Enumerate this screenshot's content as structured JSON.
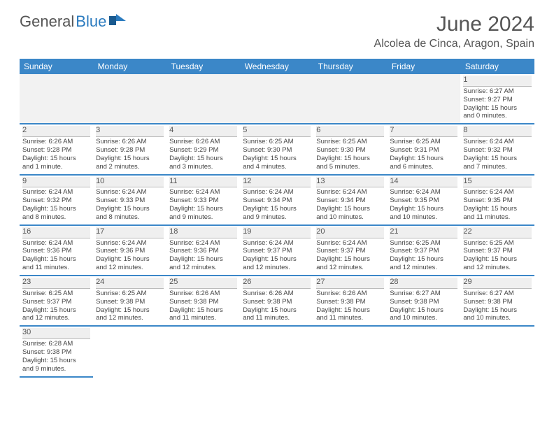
{
  "brand": {
    "part1": "General",
    "part2": "Blue"
  },
  "title": "June 2024",
  "location": "Alcolea de Cinca, Aragon, Spain",
  "day_headers": [
    "Sunday",
    "Monday",
    "Tuesday",
    "Wednesday",
    "Thursday",
    "Friday",
    "Saturday"
  ],
  "colors": {
    "header_bg": "#3b87c8",
    "header_text": "#ffffff",
    "border": "#3b87c8",
    "daynum_bg": "#efefef",
    "text": "#444444",
    "brand_gray": "#555555",
    "brand_blue": "#2b7bbf"
  },
  "weeks": [
    [
      null,
      null,
      null,
      null,
      null,
      null,
      {
        "n": "1",
        "sr": "Sunrise: 6:27 AM",
        "ss": "Sunset: 9:27 PM",
        "d1": "Daylight: 15 hours",
        "d2": "and 0 minutes."
      }
    ],
    [
      {
        "n": "2",
        "sr": "Sunrise: 6:26 AM",
        "ss": "Sunset: 9:28 PM",
        "d1": "Daylight: 15 hours",
        "d2": "and 1 minute."
      },
      {
        "n": "3",
        "sr": "Sunrise: 6:26 AM",
        "ss": "Sunset: 9:28 PM",
        "d1": "Daylight: 15 hours",
        "d2": "and 2 minutes."
      },
      {
        "n": "4",
        "sr": "Sunrise: 6:26 AM",
        "ss": "Sunset: 9:29 PM",
        "d1": "Daylight: 15 hours",
        "d2": "and 3 minutes."
      },
      {
        "n": "5",
        "sr": "Sunrise: 6:25 AM",
        "ss": "Sunset: 9:30 PM",
        "d1": "Daylight: 15 hours",
        "d2": "and 4 minutes."
      },
      {
        "n": "6",
        "sr": "Sunrise: 6:25 AM",
        "ss": "Sunset: 9:30 PM",
        "d1": "Daylight: 15 hours",
        "d2": "and 5 minutes."
      },
      {
        "n": "7",
        "sr": "Sunrise: 6:25 AM",
        "ss": "Sunset: 9:31 PM",
        "d1": "Daylight: 15 hours",
        "d2": "and 6 minutes."
      },
      {
        "n": "8",
        "sr": "Sunrise: 6:24 AM",
        "ss": "Sunset: 9:32 PM",
        "d1": "Daylight: 15 hours",
        "d2": "and 7 minutes."
      }
    ],
    [
      {
        "n": "9",
        "sr": "Sunrise: 6:24 AM",
        "ss": "Sunset: 9:32 PM",
        "d1": "Daylight: 15 hours",
        "d2": "and 8 minutes."
      },
      {
        "n": "10",
        "sr": "Sunrise: 6:24 AM",
        "ss": "Sunset: 9:33 PM",
        "d1": "Daylight: 15 hours",
        "d2": "and 8 minutes."
      },
      {
        "n": "11",
        "sr": "Sunrise: 6:24 AM",
        "ss": "Sunset: 9:33 PM",
        "d1": "Daylight: 15 hours",
        "d2": "and 9 minutes."
      },
      {
        "n": "12",
        "sr": "Sunrise: 6:24 AM",
        "ss": "Sunset: 9:34 PM",
        "d1": "Daylight: 15 hours",
        "d2": "and 9 minutes."
      },
      {
        "n": "13",
        "sr": "Sunrise: 6:24 AM",
        "ss": "Sunset: 9:34 PM",
        "d1": "Daylight: 15 hours",
        "d2": "and 10 minutes."
      },
      {
        "n": "14",
        "sr": "Sunrise: 6:24 AM",
        "ss": "Sunset: 9:35 PM",
        "d1": "Daylight: 15 hours",
        "d2": "and 10 minutes."
      },
      {
        "n": "15",
        "sr": "Sunrise: 6:24 AM",
        "ss": "Sunset: 9:35 PM",
        "d1": "Daylight: 15 hours",
        "d2": "and 11 minutes."
      }
    ],
    [
      {
        "n": "16",
        "sr": "Sunrise: 6:24 AM",
        "ss": "Sunset: 9:36 PM",
        "d1": "Daylight: 15 hours",
        "d2": "and 11 minutes."
      },
      {
        "n": "17",
        "sr": "Sunrise: 6:24 AM",
        "ss": "Sunset: 9:36 PM",
        "d1": "Daylight: 15 hours",
        "d2": "and 12 minutes."
      },
      {
        "n": "18",
        "sr": "Sunrise: 6:24 AM",
        "ss": "Sunset: 9:36 PM",
        "d1": "Daylight: 15 hours",
        "d2": "and 12 minutes."
      },
      {
        "n": "19",
        "sr": "Sunrise: 6:24 AM",
        "ss": "Sunset: 9:37 PM",
        "d1": "Daylight: 15 hours",
        "d2": "and 12 minutes."
      },
      {
        "n": "20",
        "sr": "Sunrise: 6:24 AM",
        "ss": "Sunset: 9:37 PM",
        "d1": "Daylight: 15 hours",
        "d2": "and 12 minutes."
      },
      {
        "n": "21",
        "sr": "Sunrise: 6:25 AM",
        "ss": "Sunset: 9:37 PM",
        "d1": "Daylight: 15 hours",
        "d2": "and 12 minutes."
      },
      {
        "n": "22",
        "sr": "Sunrise: 6:25 AM",
        "ss": "Sunset: 9:37 PM",
        "d1": "Daylight: 15 hours",
        "d2": "and 12 minutes."
      }
    ],
    [
      {
        "n": "23",
        "sr": "Sunrise: 6:25 AM",
        "ss": "Sunset: 9:37 PM",
        "d1": "Daylight: 15 hours",
        "d2": "and 12 minutes."
      },
      {
        "n": "24",
        "sr": "Sunrise: 6:25 AM",
        "ss": "Sunset: 9:38 PM",
        "d1": "Daylight: 15 hours",
        "d2": "and 12 minutes."
      },
      {
        "n": "25",
        "sr": "Sunrise: 6:26 AM",
        "ss": "Sunset: 9:38 PM",
        "d1": "Daylight: 15 hours",
        "d2": "and 11 minutes."
      },
      {
        "n": "26",
        "sr": "Sunrise: 6:26 AM",
        "ss": "Sunset: 9:38 PM",
        "d1": "Daylight: 15 hours",
        "d2": "and 11 minutes."
      },
      {
        "n": "27",
        "sr": "Sunrise: 6:26 AM",
        "ss": "Sunset: 9:38 PM",
        "d1": "Daylight: 15 hours",
        "d2": "and 11 minutes."
      },
      {
        "n": "28",
        "sr": "Sunrise: 6:27 AM",
        "ss": "Sunset: 9:38 PM",
        "d1": "Daylight: 15 hours",
        "d2": "and 10 minutes."
      },
      {
        "n": "29",
        "sr": "Sunrise: 6:27 AM",
        "ss": "Sunset: 9:38 PM",
        "d1": "Daylight: 15 hours",
        "d2": "and 10 minutes."
      }
    ],
    [
      {
        "n": "30",
        "sr": "Sunrise: 6:28 AM",
        "ss": "Sunset: 9:38 PM",
        "d1": "Daylight: 15 hours",
        "d2": "and 9 minutes."
      },
      null,
      null,
      null,
      null,
      null,
      null
    ]
  ]
}
